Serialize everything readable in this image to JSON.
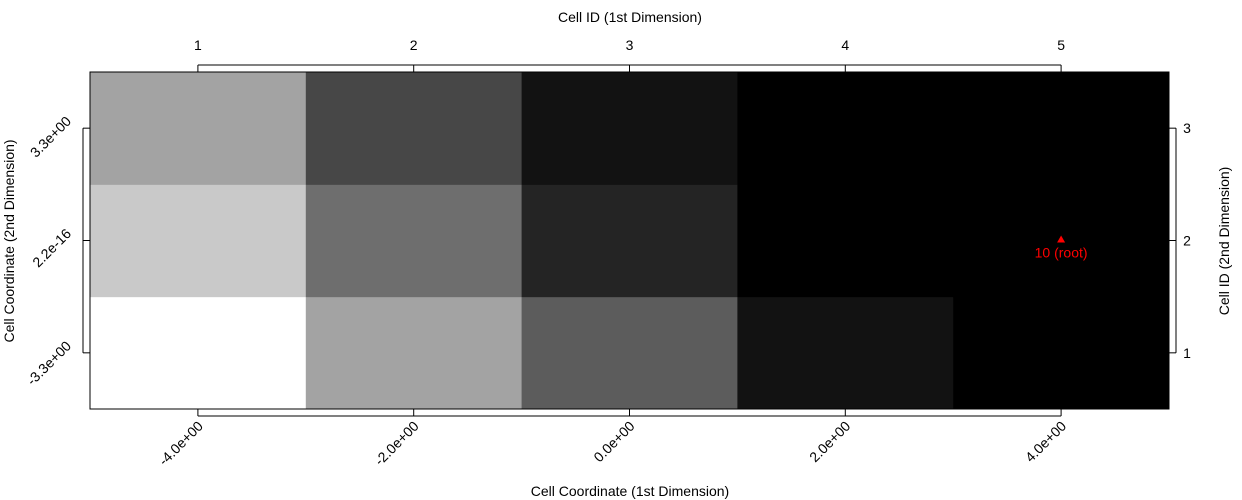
{
  "chart_data": {
    "type": "heatmap",
    "title": "",
    "xlabel": "Cell Coordinate (1st Dimension)",
    "ylabel": "Cell Coordinate (2nd Dimension)",
    "x2label": "Cell ID (1st Dimension)",
    "y2label": "Cell ID (2nd Dimension)",
    "color_scale": "grayscale",
    "x_ids": [
      "1",
      "2",
      "3",
      "4",
      "5"
    ],
    "y_ids": [
      "1",
      "2",
      "3"
    ],
    "x_coord_ticks": [
      "-4.0e+00",
      "-2.0e+00",
      "0.0e+00",
      "2.0e+00",
      "4.0e+00"
    ],
    "y_coord_ticks": [
      "-3.3e+00",
      "2.2e-16",
      "3.3e+00"
    ],
    "grid": false,
    "values": [
      [
        1.0,
        0.64,
        0.36,
        0.07,
        0.0
      ],
      [
        0.79,
        0.43,
        0.14,
        0.0,
        0.0
      ],
      [
        0.64,
        0.28,
        0.07,
        0.0,
        0.0
      ]
    ],
    "annotation": {
      "text": "10 (root)",
      "x_id": "5",
      "y_id": "2",
      "marker": "triangle",
      "color": "#ff0000"
    }
  }
}
